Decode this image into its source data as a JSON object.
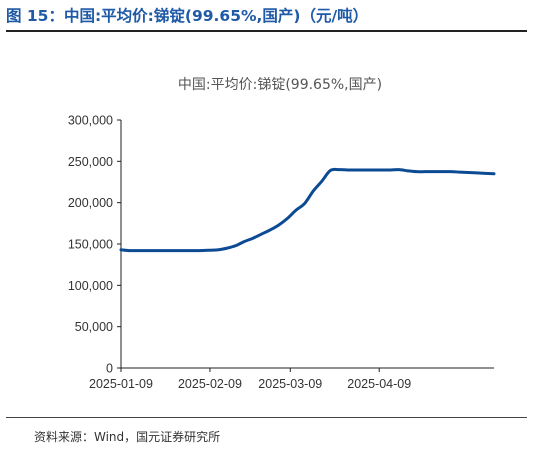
{
  "figure_title": "图 15：中国:平均价:锑锭(99.65%,国产)（元/吨）",
  "source": "资料来源：Wind，国元证券研究所",
  "colors": {
    "title": "#1f5aa6",
    "series": "#0d4a94",
    "axis": "#222222"
  },
  "chart_data": {
    "type": "line",
    "title": "中国:平均价:锑锭(99.65%,国产)",
    "xlabel": "",
    "ylabel": "",
    "ylim": [
      0,
      300000
    ],
    "yticks": [
      0,
      50000,
      100000,
      150000,
      200000,
      250000,
      300000
    ],
    "ytick_labels": [
      "0",
      "50,000",
      "100,000",
      "150,000",
      "200,000",
      "250,000",
      "300,000"
    ],
    "xlim": [
      "2025-01-09",
      "2025-05-19"
    ],
    "xticks": [
      "2025-01-09",
      "2025-02-09",
      "2025-03-09",
      "2025-04-09"
    ],
    "grid": false,
    "legend": "none",
    "series": [
      {
        "x": [
          "2025-01-09",
          "2025-01-12",
          "2025-01-16",
          "2025-01-20",
          "2025-01-24",
          "2025-01-28",
          "2025-02-01",
          "2025-02-05",
          "2025-02-09",
          "2025-02-12",
          "2025-02-15",
          "2025-02-18",
          "2025-02-21",
          "2025-02-24",
          "2025-02-27",
          "2025-03-02",
          "2025-03-05",
          "2025-03-08",
          "2025-03-11",
          "2025-03-14",
          "2025-03-17",
          "2025-03-20",
          "2025-03-23",
          "2025-03-26",
          "2025-03-29",
          "2025-04-01",
          "2025-04-04",
          "2025-04-07",
          "2025-04-10",
          "2025-04-13",
          "2025-04-16",
          "2025-04-19",
          "2025-04-22",
          "2025-04-25",
          "2025-04-28",
          "2025-05-01",
          "2025-05-04",
          "2025-05-07",
          "2025-05-10",
          "2025-05-13",
          "2025-05-16",
          "2025-05-19"
        ],
        "values": [
          143000,
          142000,
          142000,
          142000,
          142000,
          142000,
          142000,
          142000,
          142500,
          143000,
          145000,
          148000,
          153000,
          157000,
          162000,
          167000,
          173000,
          181000,
          191000,
          199000,
          214000,
          226000,
          239000,
          240000,
          239500,
          239500,
          239500,
          239500,
          239500,
          239500,
          240000,
          238500,
          237500,
          237500,
          237500,
          237500,
          237500,
          237000,
          236500,
          236000,
          235500,
          235000
        ]
      }
    ]
  }
}
